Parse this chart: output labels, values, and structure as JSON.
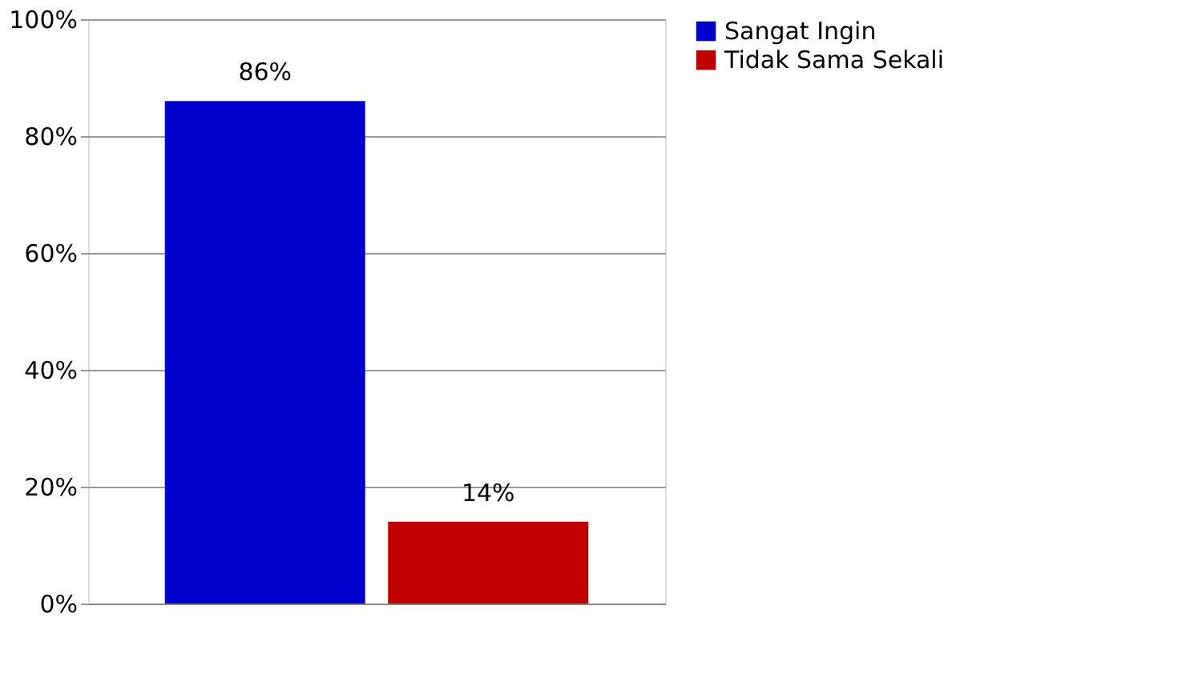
{
  "chart_data": {
    "type": "bar",
    "categories": [
      null
    ],
    "series": [
      {
        "name": "Sangat Ingin",
        "color": "#0000cc",
        "values": [
          86
        ],
        "value_labels": [
          "86%"
        ]
      },
      {
        "name": "Tidak Sama Sekali",
        "color": "#c00000",
        "values": [
          14
        ],
        "value_labels": [
          "14%"
        ]
      }
    ],
    "ylim": [
      0,
      100
    ],
    "yticks": [
      {
        "value": 0,
        "label": "0%"
      },
      {
        "value": 20,
        "label": "20%"
      },
      {
        "value": 40,
        "label": "40%"
      },
      {
        "value": 60,
        "label": "60%"
      },
      {
        "value": 80,
        "label": "80%"
      },
      {
        "value": 100,
        "label": "100%"
      }
    ],
    "grid": "y",
    "legend": "right",
    "tick_labels": "y"
  }
}
